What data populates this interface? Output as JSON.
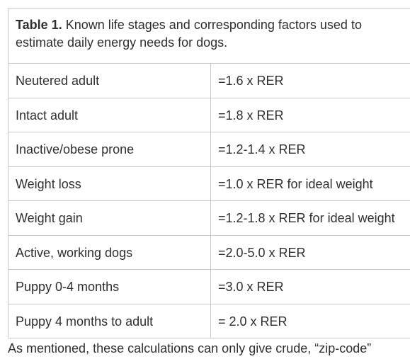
{
  "caption": {
    "label": "Table 1.",
    "text": " Known life stages and corresponding factors used to estimate daily energy needs for dogs."
  },
  "rows": [
    {
      "stage": "Neutered adult",
      "factor": "=1.6 x RER"
    },
    {
      "stage": "Intact adult",
      "factor": "=1.8 x RER"
    },
    {
      "stage": "Inactive/obese prone",
      "factor": "=1.2-1.4 x RER"
    },
    {
      "stage": "Weight loss",
      "factor": "=1.0 x RER for ideal weight"
    },
    {
      "stage": "Weight gain",
      "factor": "=1.2-1.8 x RER for ideal weight"
    },
    {
      "stage": "Active, working dogs",
      "factor": "=2.0-5.0 x RER"
    },
    {
      "stage": "Puppy 0-4 months",
      "factor": "=3.0 x RER"
    },
    {
      "stage": "Puppy 4 months to adult",
      "factor": "= 2.0 x RER"
    }
  ],
  "after_text": "As mentioned, these calculations can only give crude, “zip-code”"
}
